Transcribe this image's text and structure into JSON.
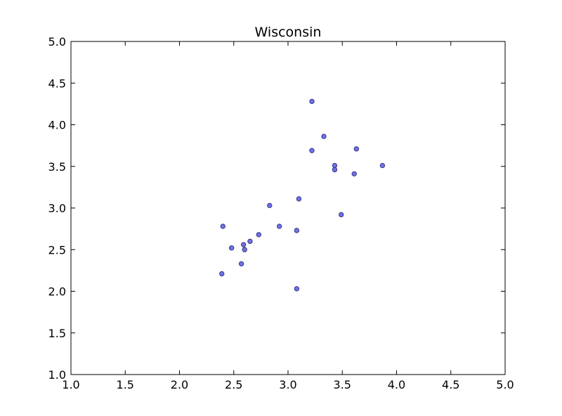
{
  "chart_data": {
    "type": "scatter",
    "title": "Wisconsin",
    "xlabel": "",
    "ylabel": "",
    "xlim": [
      1.0,
      5.0
    ],
    "ylim": [
      1.0,
      5.0
    ],
    "xticks": [
      "1.0",
      "1.5",
      "2.0",
      "2.5",
      "3.0",
      "3.5",
      "4.0",
      "4.5",
      "5.0"
    ],
    "yticks": [
      "1.0",
      "1.5",
      "2.0",
      "2.5",
      "3.0",
      "3.5",
      "4.0",
      "4.5",
      "5.0"
    ],
    "grid": false,
    "marker_color": "#7070e8",
    "marker_edge_color": "#3a3a8a",
    "points": [
      {
        "x": 3.22,
        "y": 4.28
      },
      {
        "x": 3.33,
        "y": 3.86
      },
      {
        "x": 3.22,
        "y": 3.69
      },
      {
        "x": 3.63,
        "y": 3.71
      },
      {
        "x": 3.43,
        "y": 3.51
      },
      {
        "x": 3.43,
        "y": 3.46
      },
      {
        "x": 3.61,
        "y": 3.41
      },
      {
        "x": 3.87,
        "y": 3.51
      },
      {
        "x": 3.1,
        "y": 3.11
      },
      {
        "x": 2.83,
        "y": 3.03
      },
      {
        "x": 3.49,
        "y": 2.92
      },
      {
        "x": 2.4,
        "y": 2.78
      },
      {
        "x": 2.92,
        "y": 2.78
      },
      {
        "x": 3.08,
        "y": 2.73
      },
      {
        "x": 2.73,
        "y": 2.68
      },
      {
        "x": 2.65,
        "y": 2.6
      },
      {
        "x": 2.59,
        "y": 2.56
      },
      {
        "x": 2.48,
        "y": 2.52
      },
      {
        "x": 2.6,
        "y": 2.5
      },
      {
        "x": 2.57,
        "y": 2.33
      },
      {
        "x": 2.39,
        "y": 2.21
      },
      {
        "x": 3.08,
        "y": 2.03
      }
    ]
  }
}
